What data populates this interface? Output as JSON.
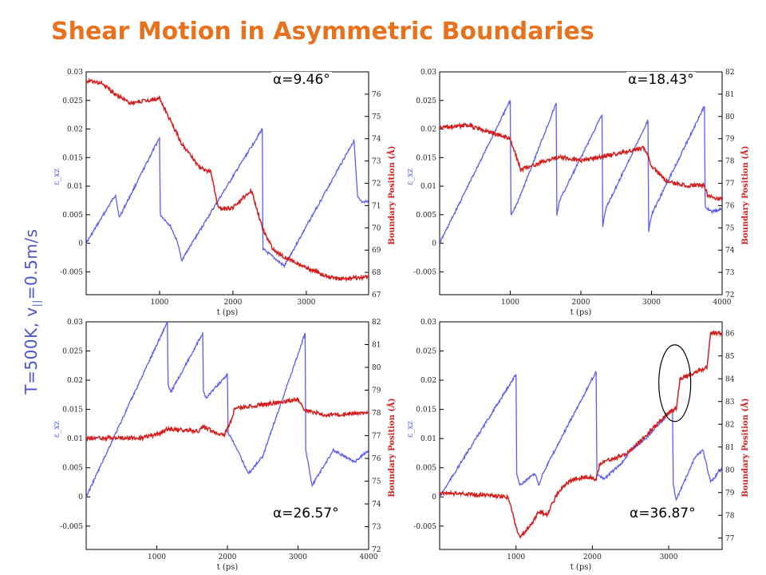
{
  "title": "Shear Motion in Asymmetric Boundaries",
  "side_label": {
    "main": "T=500K, v",
    "sub": "||",
    "rest": "=0.5m/s"
  },
  "colors": {
    "title": "#e8711d",
    "strain": "#5a5cf5",
    "boundary": "#d41d1d",
    "side_label": "#4a55c8"
  },
  "chart_data": [
    {
      "type": "line",
      "label": "α=9.46°",
      "xlabel": "t (ps)",
      "ylabel": "ε_xz",
      "y2label": "Boundary Position (Å)",
      "xlim": [
        0,
        3850
      ],
      "ylim": [
        -0.009,
        0.03
      ],
      "y2lim": [
        67,
        77
      ],
      "xticks": [
        1000,
        2000,
        3000
      ],
      "yticks": [
        "0.03",
        "0.025",
        "0.02",
        "0.015",
        "0.01",
        "0.005",
        "0",
        "-0.005"
      ],
      "y2ticks": [
        "67",
        "68",
        "69",
        "70",
        "71",
        "72",
        "73",
        "74",
        "75",
        "76"
      ],
      "series": [
        {
          "role": "strain",
          "axis": "left",
          "x": [
            0,
            400,
            450,
            1000,
            1010,
            1150,
            1250,
            1300,
            1800,
            2400,
            2410,
            2700,
            3650,
            3700,
            3770,
            3850
          ],
          "y": [
            0,
            0.0085,
            0.0045,
            0.0185,
            0.005,
            0.003,
            0,
            -0.003,
            0.0075,
            0.02,
            -0.001,
            -0.004,
            0.018,
            0.008,
            0.007,
            0.0075
          ]
        },
        {
          "role": "boundary",
          "axis": "right",
          "x": [
            0,
            200,
            400,
            600,
            1000,
            1150,
            1300,
            1550,
            1700,
            1800,
            2000,
            2250,
            2400,
            2550,
            2750,
            3000,
            3400,
            3850
          ],
          "y": [
            76.6,
            76.5,
            76.0,
            75.6,
            75.8,
            74.8,
            73.8,
            72.7,
            72.5,
            70.9,
            70.9,
            71.7,
            70.0,
            69.0,
            68.6,
            68.2,
            67.7,
            67.8
          ]
        }
      ]
    },
    {
      "type": "line",
      "label": "α=18.43°",
      "xlabel": "t (ps)",
      "ylabel": "ε_xz",
      "y2label": "Boundary Position (Å)",
      "xlim": [
        0,
        4000
      ],
      "ylim": [
        -0.009,
        0.03
      ],
      "y2lim": [
        72,
        82
      ],
      "xticks": [
        1000,
        2000,
        3000,
        4000
      ],
      "yticks": [
        "0.03",
        "0.025",
        "0.02",
        "0.015",
        "0.01",
        "0.005",
        "0",
        "-0.005"
      ],
      "y2ticks": [
        "72",
        "73",
        "74",
        "75",
        "76",
        "77",
        "78",
        "79",
        "80",
        "81",
        "82"
      ],
      "series": [
        {
          "role": "strain",
          "axis": "left",
          "x": [
            0,
            1000,
            1010,
            1100,
            1650,
            1660,
            1700,
            2300,
            2310,
            2350,
            2950,
            2960,
            3000,
            3750,
            3760,
            3850,
            4000
          ],
          "y": [
            0,
            0.025,
            0.005,
            0.007,
            0.0245,
            0.005,
            0.0075,
            0.0225,
            0.003,
            0.006,
            0.0215,
            0.002,
            0.005,
            0.024,
            0.0065,
            0.0055,
            0.006
          ]
        },
        {
          "role": "boundary",
          "axis": "right",
          "x": [
            0,
            400,
            800,
            1000,
            1150,
            1400,
            1700,
            2000,
            2300,
            2600,
            2900,
            3000,
            3200,
            3500,
            3750,
            3800,
            4000
          ],
          "y": [
            79.5,
            79.6,
            79.2,
            79.0,
            77.6,
            77.9,
            78.2,
            78.0,
            78.2,
            78.4,
            78.6,
            77.8,
            77.1,
            76.9,
            76.9,
            76.4,
            76.3
          ]
        }
      ]
    },
    {
      "type": "line",
      "label": "α=26.57°",
      "xlabel": "t (ps)",
      "ylabel": "ε_xz",
      "y2label": "Boundary Position (Å)",
      "xlim": [
        0,
        4000
      ],
      "ylim": [
        -0.009,
        0.03
      ],
      "y2lim": [
        72,
        82
      ],
      "xticks": [
        1000,
        2000,
        3000,
        4000
      ],
      "yticks": [
        "0.03",
        "0.025",
        "0.02",
        "0.015",
        "0.01",
        "0.005",
        "0",
        "-0.005"
      ],
      "y2ticks": [
        "72",
        "73",
        "74",
        "75",
        "76",
        "77",
        "78",
        "79",
        "80",
        "81",
        "82"
      ],
      "series": [
        {
          "role": "strain",
          "axis": "left",
          "x": [
            0,
            1150,
            1160,
            1200,
            1650,
            1660,
            1700,
            2000,
            2010,
            2100,
            2300,
            2500,
            3100,
            3110,
            3200,
            3500,
            3800,
            4000
          ],
          "y": [
            0,
            0.03,
            0.019,
            0.018,
            0.028,
            0.018,
            0.017,
            0.021,
            0.011,
            0.009,
            0.004,
            0.007,
            0.028,
            0.008,
            0.002,
            0.008,
            0.006,
            0.008
          ]
        },
        {
          "role": "boundary",
          "axis": "right",
          "x": [
            0,
            800,
            1050,
            1150,
            1600,
            1650,
            1950,
            2050,
            2100,
            2600,
            3000,
            3100,
            3400,
            4000
          ],
          "y": [
            76.9,
            76.9,
            77.1,
            77.3,
            77.2,
            77.4,
            77.0,
            77.6,
            78.2,
            78.4,
            78.6,
            78.1,
            77.9,
            78.0
          ]
        }
      ]
    },
    {
      "type": "line",
      "label": "α=36.87°",
      "xlabel": "t (ps)",
      "ylabel": "ε_xz",
      "y2label": "Boundary Position (Å)",
      "xlim": [
        0,
        3700
      ],
      "ylim": [
        -0.009,
        0.03
      ],
      "y2lim": [
        76.5,
        86.5
      ],
      "xticks": [
        1000,
        2000,
        3000
      ],
      "yticks": [
        "0.03",
        "0.025",
        "0.02",
        "0.015",
        "0.01",
        "0.005",
        "0",
        "-0.005"
      ],
      "y2ticks": [
        "77",
        "78",
        "79",
        "80",
        "81",
        "82",
        "83",
        "84",
        "85",
        "86"
      ],
      "series": [
        {
          "role": "strain",
          "axis": "left",
          "x": [
            0,
            1000,
            1010,
            1050,
            1250,
            1300,
            1350,
            2050,
            2060,
            2150,
            2400,
            2500,
            2700,
            3050,
            3060,
            3100,
            3350,
            3450,
            3550,
            3700
          ],
          "y": [
            0,
            0.021,
            0.004,
            0.002,
            0.004,
            0.002,
            0.004,
            0.0215,
            0.004,
            0.003,
            0.006,
            0.008,
            0.01,
            0.015,
            0.002,
            -0.0005,
            0.007,
            0.008,
            0.0025,
            0.005
          ]
        },
        {
          "role": "boundary",
          "axis": "right",
          "x": [
            0,
            500,
            900,
            1000,
            1050,
            1200,
            1300,
            1400,
            1550,
            1700,
            1900,
            2050,
            2100,
            2450,
            2700,
            3000,
            3100,
            3150,
            3500,
            3550,
            3700
          ],
          "y": [
            79.0,
            78.9,
            78.8,
            77.5,
            77.0,
            77.6,
            78.2,
            78.0,
            79.0,
            79.5,
            79.7,
            79.6,
            80.3,
            80.7,
            81.5,
            82.5,
            82.7,
            84.0,
            84.5,
            86.0,
            86.0
          ]
        }
      ]
    }
  ]
}
